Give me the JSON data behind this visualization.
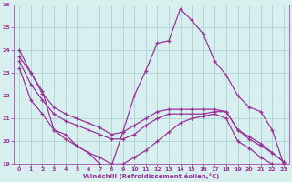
{
  "x": [
    0,
    1,
    2,
    3,
    4,
    5,
    6,
    7,
    8,
    9,
    10,
    11,
    12,
    13,
    14,
    15,
    16,
    17,
    18,
    19,
    20,
    21,
    22,
    23
  ],
  "line1": [
    23.7,
    23.0,
    22.2,
    20.5,
    20.3,
    19.8,
    19.5,
    19.0,
    18.9,
    20.4,
    22.0,
    23.1,
    24.3,
    24.4,
    25.8,
    25.3,
    24.7,
    23.5,
    22.9,
    22.0,
    21.5,
    21.3,
    20.5,
    19.0
  ],
  "line2": [
    24.0,
    23.0,
    22.1,
    21.5,
    21.2,
    21.0,
    20.8,
    20.6,
    20.3,
    20.4,
    20.7,
    21.0,
    21.3,
    21.4,
    21.4,
    21.4,
    21.4,
    21.4,
    21.3,
    20.5,
    20.2,
    19.9,
    19.5,
    19.1
  ],
  "line3": [
    23.5,
    22.5,
    21.8,
    21.2,
    20.9,
    20.7,
    20.5,
    20.3,
    20.1,
    20.1,
    20.3,
    20.7,
    21.0,
    21.2,
    21.2,
    21.2,
    21.2,
    21.3,
    21.3,
    20.5,
    20.1,
    19.8,
    19.5,
    19.1
  ],
  "line4": [
    23.2,
    21.8,
    21.2,
    20.5,
    20.1,
    19.8,
    19.5,
    19.3,
    19.0,
    19.0,
    19.3,
    19.6,
    20.0,
    20.4,
    20.8,
    21.0,
    21.1,
    21.2,
    21.0,
    20.0,
    19.7,
    19.3,
    19.0,
    19.0
  ],
  "ylim": [
    19,
    26
  ],
  "xlim": [
    -0.5,
    23.5
  ],
  "yticks": [
    19,
    20,
    21,
    22,
    23,
    24,
    25,
    26
  ],
  "xticks": [
    0,
    1,
    2,
    3,
    4,
    5,
    6,
    7,
    8,
    9,
    10,
    11,
    12,
    13,
    14,
    15,
    16,
    17,
    18,
    19,
    20,
    21,
    22,
    23
  ],
  "xlabel": "Windchill (Refroidissement éolien,°C)",
  "line_color": "#993399",
  "bg_color": "#d7efef",
  "grid_color": "#aacccc"
}
